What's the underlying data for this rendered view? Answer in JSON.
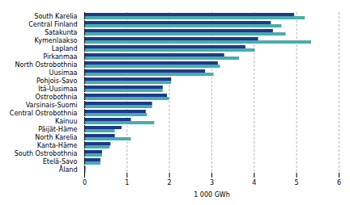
{
  "chart_data": {
    "type": "bar",
    "orientation": "horizontal",
    "xlabel": "1 000 GWh",
    "categories": [
      "South Karelia",
      "Central Finland",
      "Satakunta",
      "Kymenlaakso",
      "Lapland",
      "Pirkanmaa",
      "North Ostrobothnia",
      "Uusimaa",
      "Pohjois-Savo",
      "Itä-Uusimaa",
      "Ostrobothnia",
      "Varsinais-Suomi",
      "Central Ostrobothnia",
      "Kainuu",
      "Päijät-Häme",
      "North Karelia",
      "Kanta-Häme",
      "South Ostrobothnia",
      "Etelä-Savo",
      "Åland"
    ],
    "series": [
      {
        "color": "#1a3a8c",
        "values": [
          4.95,
          4.4,
          4.45,
          4.1,
          3.8,
          3.3,
          3.15,
          2.85,
          2.05,
          1.85,
          1.95,
          1.6,
          1.45,
          1.1,
          0.88,
          0.72,
          0.62,
          0.42,
          0.38,
          0.03
        ]
      },
      {
        "color": "#4aada8",
        "values": [
          5.2,
          4.65,
          4.75,
          5.35,
          4.02,
          3.65,
          3.2,
          3.05,
          2.05,
          1.85,
          2.0,
          1.6,
          1.48,
          1.65,
          0.72,
          1.1,
          0.6,
          0.42,
          0.38,
          0.03
        ]
      }
    ],
    "xlim": [
      0,
      6
    ],
    "xticks": [
      0,
      1,
      2,
      3,
      4,
      5,
      6
    ],
    "grid": true
  }
}
